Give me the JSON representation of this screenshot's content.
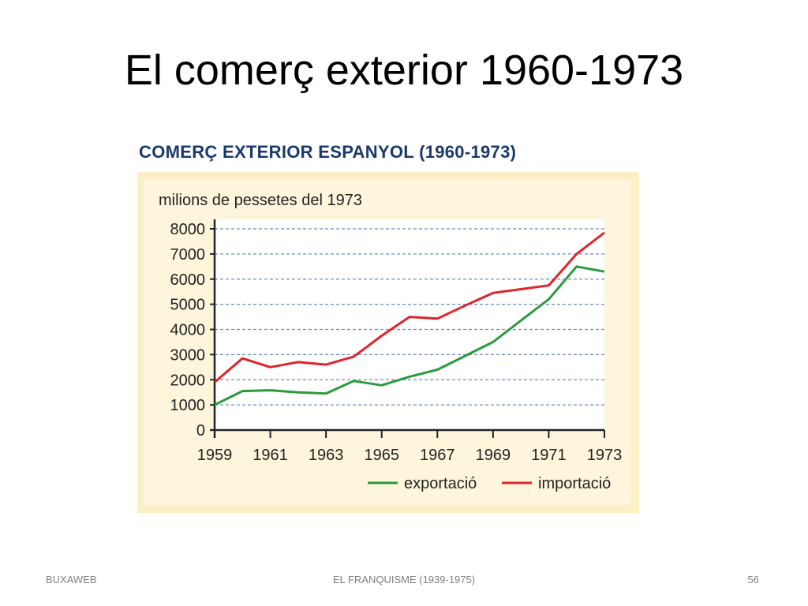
{
  "slide": {
    "title": "El comerç exterior 1960-1973",
    "footer_left": "BUXAWEB",
    "footer_center": "EL FRANQUISME (1939-1975)",
    "page_number": "56"
  },
  "chart_data": {
    "type": "line",
    "title": "COMERÇ EXTERIOR ESPANYOL (1960-1973)",
    "ylabel": "milions de pessetes del 1973",
    "xlabel": "",
    "x": [
      1959,
      1960,
      1961,
      1962,
      1963,
      1964,
      1965,
      1966,
      1967,
      1968,
      1969,
      1970,
      1971,
      1972,
      1973
    ],
    "xticks": [
      "1959",
      "1961",
      "1963",
      "1965",
      "1967",
      "1969",
      "1971",
      "1973"
    ],
    "yticks": [
      "0",
      "1000",
      "2000",
      "3000",
      "4000",
      "5000",
      "6000",
      "7000",
      "8000"
    ],
    "ylim": [
      0,
      8000
    ],
    "xlim": [
      1959,
      1973
    ],
    "grid": true,
    "legend": "bottom-right",
    "series": [
      {
        "name": "exportació",
        "color": "#2a9a3c",
        "values": [
          1000,
          1550,
          1580,
          1500,
          1450,
          1950,
          1780,
          2120,
          2400,
          2950,
          3500,
          4350,
          5200,
          6500,
          6300
        ]
      },
      {
        "name": "importació",
        "color": "#e0242c",
        "values": [
          1900,
          2850,
          2500,
          2700,
          2600,
          2920,
          3750,
          4500,
          4430,
          4950,
          5450,
          5600,
          5750,
          7000,
          7850
        ]
      }
    ]
  }
}
